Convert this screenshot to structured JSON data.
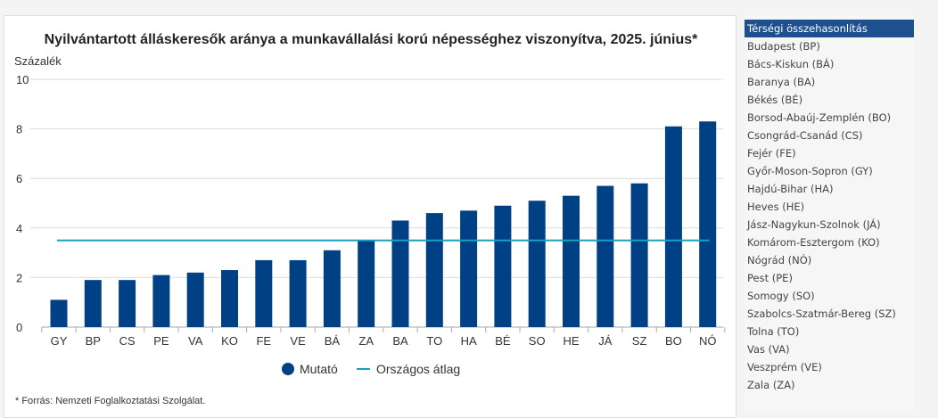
{
  "chart_data": {
    "type": "bar",
    "title": "Nyilvántartott álláskeresők aránya a munkavállalási korú népességhez viszonyítva, 2025. június*",
    "ylabel": "Százalék",
    "ylim": [
      0,
      10
    ],
    "yticks": [
      "0",
      "2",
      "4",
      "6",
      "8",
      "10"
    ],
    "grid": true,
    "legend_placement": "bottom",
    "categories": [
      "GY",
      "BP",
      "CS",
      "PE",
      "VA",
      "KO",
      "FE",
      "VE",
      "BÁ",
      "ZA",
      "BA",
      "TO",
      "HA",
      "BÉ",
      "SO",
      "HE",
      "JÁ",
      "SZ",
      "BO",
      "NÓ"
    ],
    "series": [
      {
        "name": "Mutató",
        "type": "bar",
        "color": "#004084",
        "values": [
          1.1,
          1.9,
          1.9,
          2.1,
          2.2,
          2.3,
          2.7,
          2.7,
          3.1,
          3.5,
          4.3,
          4.6,
          4.7,
          4.9,
          5.1,
          5.3,
          5.7,
          5.8,
          8.1,
          8.3
        ]
      },
      {
        "name": "Országos átlag",
        "type": "line",
        "color": "#1aa0c0",
        "value": 3.5
      }
    ],
    "footnote": "* Forrás: Nemzeti Foglalkoztatási Szolgálat."
  },
  "sidebar": {
    "header": "Térségi összehasonlítás",
    "items": [
      "Budapest (BP)",
      "Bács-Kiskun (BÁ)",
      "Baranya (BA)",
      "Békés (BÉ)",
      "Borsod-Abaúj-Zemplén (BO)",
      "Csongrád-Csanád (CS)",
      "Fejér (FE)",
      "Győr-Moson-Sopron (GY)",
      "Hajdú-Bihar (HA)",
      "Heves (HE)",
      "Jász-Nagykun-Szolnok (JÁ)",
      "Komárom-Esztergom (KO)",
      "Nógrád (NÓ)",
      "Pest (PE)",
      "Somogy (SO)",
      "Szabolcs-Szatmár-Bereg (SZ)",
      "Tolna (TO)",
      "Vas (VA)",
      "Veszprém (VE)",
      "Zala (ZA)"
    ]
  }
}
